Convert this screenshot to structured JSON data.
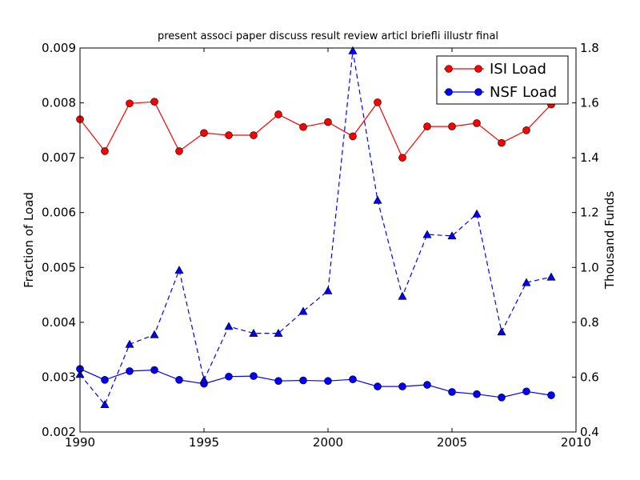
{
  "chart_data": {
    "type": "line",
    "title": "present associ paper discuss result review articl briefli illustr final",
    "xlabel": "",
    "ylabel": "Fraction of Load",
    "y2label": "Thousand Funds",
    "xlim": [
      1990,
      2010
    ],
    "ylim": [
      0.002,
      0.009
    ],
    "y2lim": [
      0.4,
      1.8
    ],
    "x_ticks": [
      1990,
      1995,
      2000,
      2005,
      2010
    ],
    "y_ticks": [
      0.002,
      0.003,
      0.004,
      0.005,
      0.006,
      0.007,
      0.008,
      0.009
    ],
    "y2_ticks": [
      0.4,
      0.6,
      0.8,
      1.0,
      1.2,
      1.4,
      1.6,
      1.8
    ],
    "x_tick_labels": [
      "1990",
      "1995",
      "2000",
      "2005",
      "2010"
    ],
    "y_tick_labels": [
      "0.002",
      "0.003",
      "0.004",
      "0.005",
      "0.006",
      "0.007",
      "0.008",
      "0.009"
    ],
    "y2_tick_labels": [
      "0.4",
      "0.6",
      "0.8",
      "1.0",
      "1.2",
      "1.4",
      "1.6",
      "1.8"
    ],
    "grid": false,
    "legend_position": "top-right",
    "x": [
      1990,
      1991,
      1992,
      1993,
      1994,
      1995,
      1996,
      1997,
      1998,
      1999,
      2000,
      2001,
      2002,
      2003,
      2004,
      2005,
      2006,
      2007,
      2008,
      2009
    ],
    "series": [
      {
        "name": "ISI Load",
        "axis": "left",
        "color": "#ff0000",
        "line_style": "solid",
        "marker": "circle",
        "values": [
          0.0077,
          0.00712,
          0.00799,
          0.00802,
          0.00712,
          0.00745,
          0.00741,
          0.00741,
          0.00779,
          0.00756,
          0.00765,
          0.00739,
          0.00801,
          0.007,
          0.00757,
          0.00757,
          0.00763,
          0.00727,
          0.0075,
          0.00797
        ]
      },
      {
        "name": "NSF Load",
        "axis": "left",
        "color": "#0000ff",
        "line_style": "solid",
        "marker": "circle",
        "values": [
          0.00315,
          0.00295,
          0.00311,
          0.00313,
          0.00295,
          0.00288,
          0.00301,
          0.00302,
          0.00293,
          0.00294,
          0.00293,
          0.00296,
          0.00283,
          0.00283,
          0.00286,
          0.00273,
          0.00269,
          0.00263,
          0.00274,
          0.00267
        ]
      },
      {
        "axis": "right",
        "color": "#0000ff",
        "line_style": "dashed",
        "marker": "triangle",
        "values": [
          0.61,
          0.5,
          0.72,
          0.755,
          0.99,
          0.59,
          0.785,
          0.76,
          0.76,
          0.84,
          0.915,
          1.79,
          1.245,
          0.895,
          1.12,
          1.115,
          1.195,
          0.765,
          0.945,
          0.965
        ]
      }
    ]
  },
  "colors": {
    "isi": "#ff0000",
    "nsf": "#0000ff",
    "axes": "#000000",
    "background": "#ffffff"
  }
}
